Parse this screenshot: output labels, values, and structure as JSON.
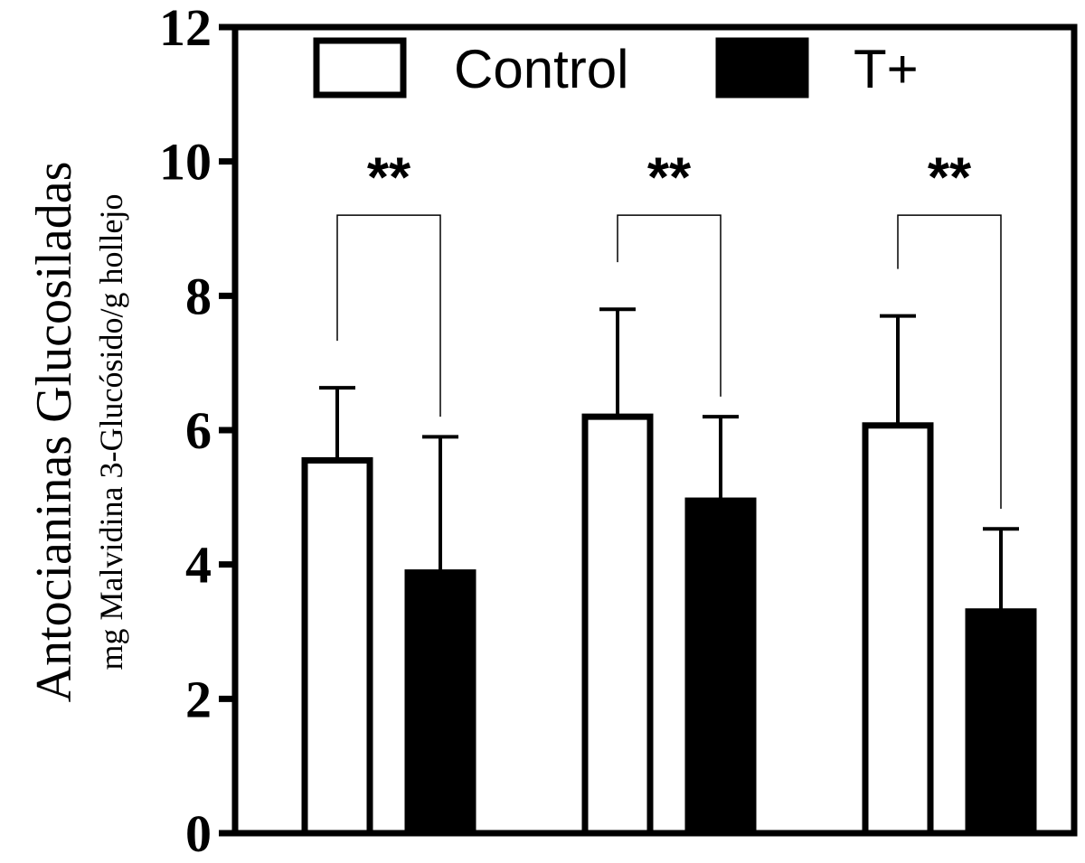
{
  "chart_data": {
    "type": "bar",
    "categories": [
      "",
      "",
      ""
    ],
    "series": [
      {
        "name": "Control",
        "values": [
          5.55,
          6.2,
          6.07
        ],
        "errors": [
          1.08,
          1.6,
          1.63
        ],
        "fill": "#ffffff"
      },
      {
        "name": "T+",
        "values": [
          3.88,
          4.95,
          3.3
        ],
        "errors": [
          2.02,
          1.25,
          1.23
        ],
        "fill": "#000000"
      }
    ],
    "ylabel": "Antocianinas Glucosiladas",
    "ylabel_sub": "mg Malvidina 3-Glucósido/g hollejo",
    "xlabel": "",
    "ylim": [
      0,
      12
    ],
    "yticks": [
      "0",
      "2",
      "4",
      "6",
      "8",
      "10",
      "12"
    ],
    "significance": [
      "**",
      "**",
      "**"
    ],
    "legend_position": "top",
    "grid": false
  }
}
